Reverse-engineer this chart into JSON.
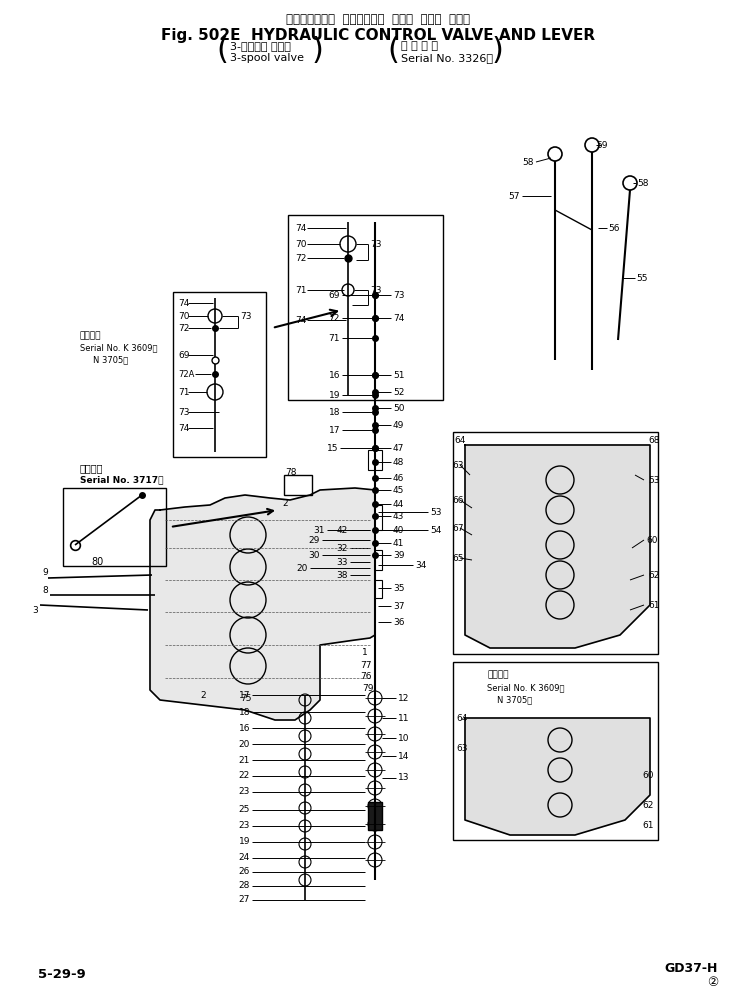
{
  "bg_color": "#ffffff",
  "lc": "#000000",
  "title_jp": "ハイドロリック  コントロール  バルブ  および  レバー",
  "title_en": "Fig. 502E  HYDRAULIC CONTROL VALVE AND LEVER",
  "sub_l1": "3-スプール バルブ",
  "sub_l2": "3-spool valve",
  "sub_r1": "適 用 号 機",
  "sub_r2": "Serial No. 3326～",
  "footer_l": "5-29-9",
  "footer_r": "GD37-H",
  "footer_pg": "②"
}
